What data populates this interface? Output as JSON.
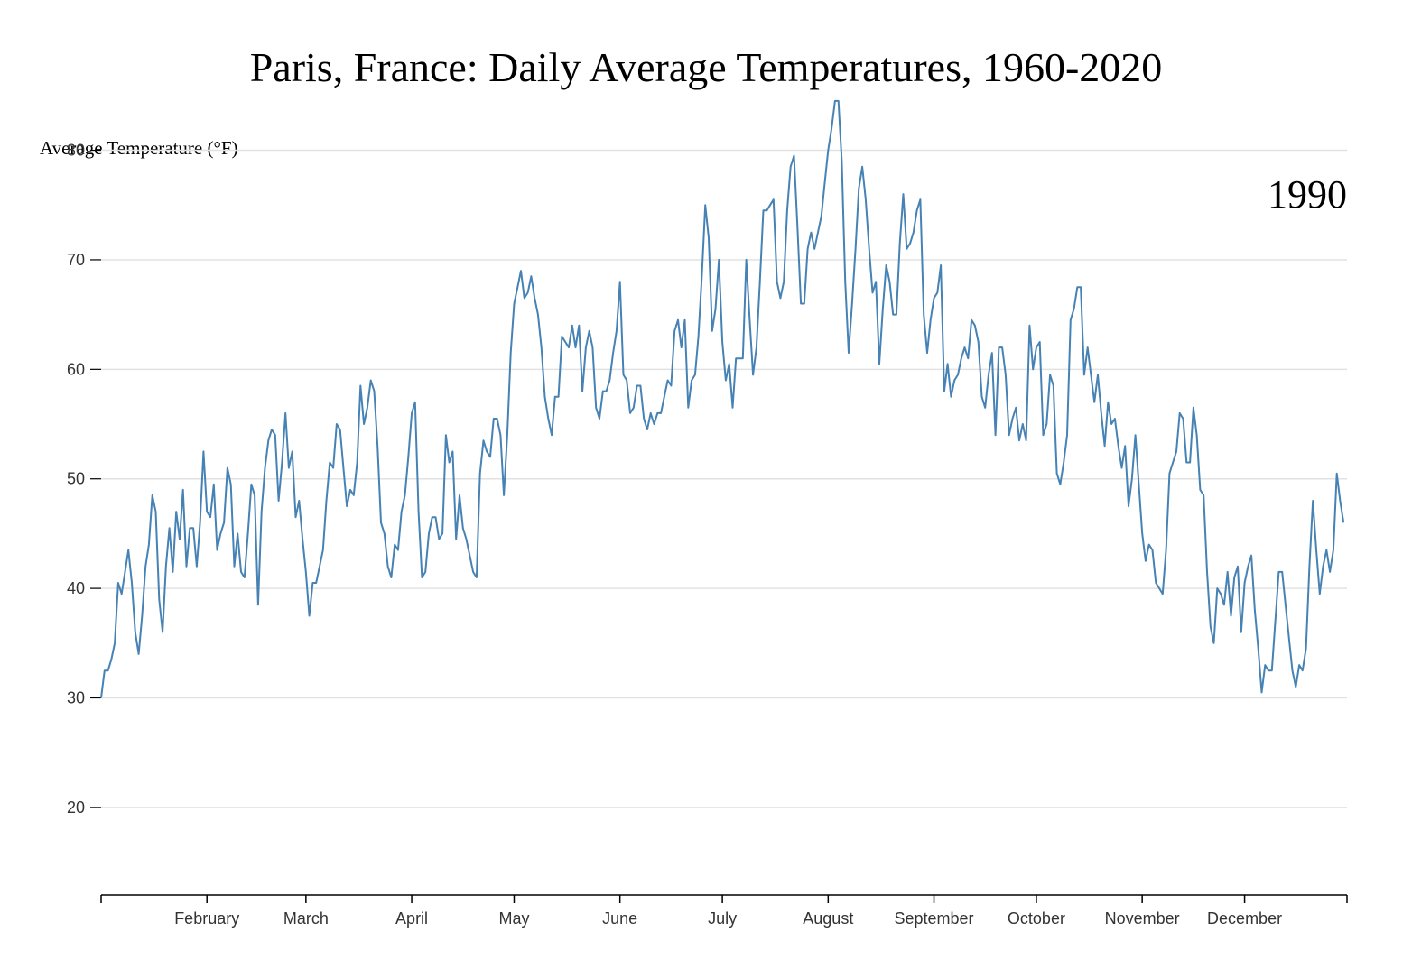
{
  "chart_data": {
    "type": "line",
    "title": "Paris, France: Daily Average Temperatures, 1960-2020",
    "ylabel": "Average Temperature (°F)",
    "xlabel": "",
    "annotation": "1990",
    "ylim": [
      12,
      84
    ],
    "xlim": [
      1,
      366
    ],
    "grid": true,
    "y_ticks": [
      20,
      30,
      40,
      50,
      60,
      70,
      80
    ],
    "x_ticks": [
      {
        "label": "",
        "day": 1
      },
      {
        "label": "February",
        "day": 32
      },
      {
        "label": "March",
        "day": 61
      },
      {
        "label": "April",
        "day": 92
      },
      {
        "label": "May",
        "day": 122
      },
      {
        "label": "June",
        "day": 153
      },
      {
        "label": "July",
        "day": 183
      },
      {
        "label": "August",
        "day": 214
      },
      {
        "label": "September",
        "day": 245
      },
      {
        "label": "October",
        "day": 275
      },
      {
        "label": "November",
        "day": 306
      },
      {
        "label": "December",
        "day": 336
      },
      {
        "label": "",
        "day": 366
      }
    ],
    "series": [
      {
        "color": "#4682b4",
        "values": [
          30,
          32.5,
          32.5,
          33.5,
          35,
          40.5,
          39.5,
          41.5,
          43.5,
          40.5,
          36,
          34,
          37.5,
          42,
          44,
          48.5,
          47,
          39,
          36,
          42,
          45.5,
          41.5,
          47,
          44.5,
          49,
          42,
          45.5,
          45.5,
          42,
          46,
          52.5,
          47,
          46.5,
          49.5,
          43.5,
          45,
          46,
          51,
          49.5,
          42,
          45,
          41.5,
          41,
          45,
          49.5,
          48.5,
          38.5,
          47,
          51,
          53.5,
          54.5,
          54,
          48,
          51.5,
          56,
          51,
          52.5,
          46.5,
          48,
          44.5,
          41.5,
          37.5,
          40.5,
          40.5,
          42,
          43.5,
          48,
          51.5,
          51,
          55,
          54.5,
          51,
          47.5,
          49,
          48.5,
          51.5,
          58.5,
          55,
          56.5,
          59,
          58,
          53,
          46,
          45,
          42,
          41,
          44,
          43.5,
          47,
          48.5,
          52,
          56,
          57,
          47,
          41,
          41.5,
          45,
          46.5,
          46.5,
          44.5,
          45,
          54,
          51.5,
          52.5,
          44.5,
          48.5,
          45.5,
          44.5,
          43,
          41.5,
          41,
          50.5,
          53.5,
          52.5,
          52,
          55.5,
          55.5,
          54,
          48.5,
          54,
          61.5,
          66,
          67.5,
          69,
          66.5,
          67,
          68.5,
          66.5,
          65,
          62,
          57.5,
          55.5,
          54,
          57.5,
          57.5,
          63,
          62.5,
          62,
          64,
          62,
          64,
          58,
          62,
          63.5,
          62,
          56.5,
          55.5,
          58,
          58,
          59,
          61.5,
          63.5,
          68,
          59.5,
          59,
          56,
          56.5,
          58.5,
          58.5,
          55.5,
          54.5,
          56,
          55,
          56,
          56,
          57.5,
          59,
          58.5,
          63.5,
          64.5,
          62,
          64.5,
          56.5,
          59,
          59.5,
          63,
          68.5,
          75,
          72,
          63.5,
          65.5,
          70,
          62.5,
          59,
          60.5,
          56.5,
          61,
          61,
          61,
          70,
          64.5,
          59.5,
          62,
          68,
          74.5,
          74.5,
          75,
          75.5,
          68,
          66.5,
          68,
          74.5,
          78.5,
          79.5,
          73,
          66,
          66,
          71,
          72.5,
          71,
          72.5,
          74,
          77,
          80,
          82,
          84.5,
          84.5,
          79,
          68,
          61.5,
          66,
          71,
          76.5,
          78.5,
          75.5,
          71,
          67,
          68,
          60.5,
          65.5,
          69.5,
          68,
          65,
          65,
          71.5,
          76,
          71,
          71.5,
          72.5,
          74.5,
          75.5,
          65,
          61.5,
          64.5,
          66.5,
          67,
          69.5,
          58,
          60.5,
          57.5,
          59,
          59.5,
          61,
          62,
          61,
          64.5,
          64,
          62.5,
          57.5,
          56.5,
          59.5,
          61.5,
          54,
          62,
          62,
          59.5,
          54,
          55.5,
          56.5,
          53.5,
          55,
          53.5,
          64,
          60,
          62,
          62.5,
          54,
          55,
          59.5,
          58.5,
          50.5,
          49.5,
          51.5,
          54,
          64.5,
          65.5,
          67.5,
          67.5,
          59.5,
          62,
          59.5,
          57,
          59.5,
          56,
          53,
          57,
          55,
          55.5,
          53,
          51,
          53,
          47.5,
          50,
          54,
          49.5,
          45,
          42.5,
          44,
          43.5,
          40.5,
          40,
          39.5,
          43.5,
          50.5,
          51.5,
          52.5,
          56,
          55.5,
          51.5,
          51.5,
          56.5,
          54,
          49,
          48.5,
          41.5,
          36.5,
          35,
          40,
          39.5,
          38.5,
          41.5,
          37.5,
          41,
          42,
          36,
          40.5,
          42,
          43,
          38,
          34.5,
          30.5,
          33,
          32.5,
          32.5,
          37,
          41.5,
          41.5,
          38.5,
          35.5,
          32.5,
          31,
          33,
          32.5,
          34.5,
          42,
          48,
          43.5,
          39.5,
          42,
          43.5,
          41.5,
          43.5,
          50.5,
          48,
          46
        ]
      }
    ]
  }
}
